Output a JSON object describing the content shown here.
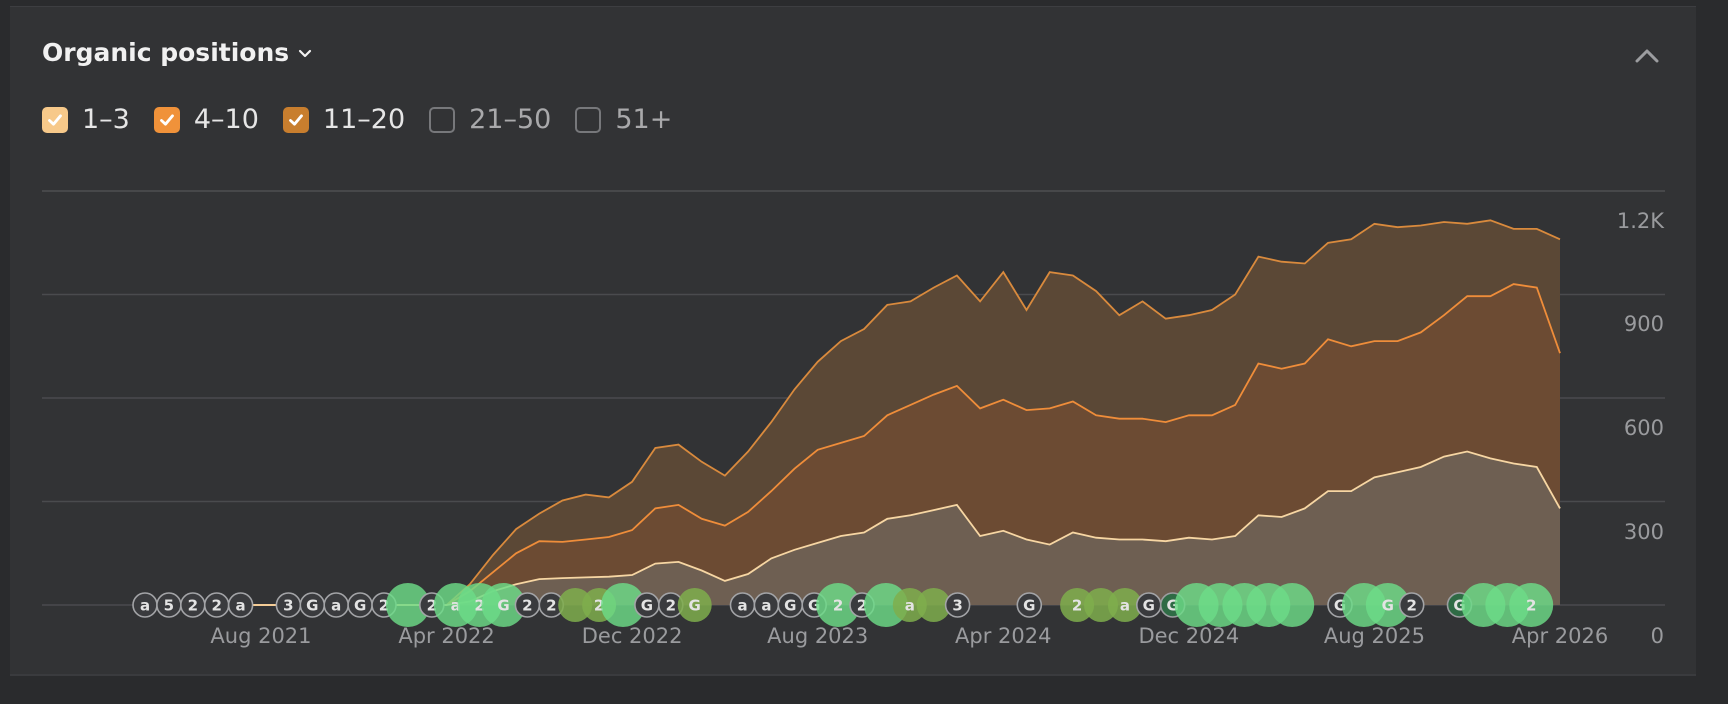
{
  "header": {
    "title": "Organic positions"
  },
  "legend": [
    {
      "label": "1–3",
      "checked": true,
      "color": "#f7c98a"
    },
    {
      "label": "4–10",
      "checked": true,
      "color": "#f0923a"
    },
    {
      "label": "11–20",
      "checked": true,
      "color": "#c87e2e"
    },
    {
      "label": "21–50",
      "checked": false,
      "color": "#77787b"
    },
    {
      "label": "51+",
      "checked": false,
      "color": "#77787b"
    }
  ],
  "chart_data": {
    "type": "area",
    "stacked": true,
    "x_ticks": [
      "Aug 2021",
      "Apr 2022",
      "Dec 2022",
      "Aug 2023",
      "Apr 2024",
      "Dec 2024",
      "Aug 2025",
      "Apr 2026"
    ],
    "x_start": "2021-03",
    "x_end": "2026-04",
    "y_ticks": [
      "0",
      "300",
      "600",
      "900",
      "1.2K"
    ],
    "ylim": [
      0,
      1200
    ],
    "grid": true,
    "months": [
      "2021-03",
      "2021-04",
      "2021-05",
      "2021-06",
      "2021-07",
      "2021-08",
      "2021-09",
      "2021-10",
      "2021-11",
      "2021-12",
      "2022-01",
      "2022-02",
      "2022-03",
      "2022-04",
      "2022-05",
      "2022-06",
      "2022-07",
      "2022-08",
      "2022-09",
      "2022-10",
      "2022-11",
      "2022-12",
      "2023-01",
      "2023-02",
      "2023-03",
      "2023-04",
      "2023-05",
      "2023-06",
      "2023-07",
      "2023-08",
      "2023-09",
      "2023-10",
      "2023-11",
      "2023-12",
      "2024-01",
      "2024-02",
      "2024-03",
      "2024-04",
      "2024-05",
      "2024-06",
      "2024-07",
      "2024-08",
      "2024-09",
      "2024-10",
      "2024-11",
      "2024-12",
      "2025-01",
      "2025-02",
      "2025-03",
      "2025-04",
      "2025-05",
      "2025-06",
      "2025-07",
      "2025-08",
      "2025-09",
      "2025-10",
      "2025-11",
      "2025-12",
      "2026-01",
      "2026-02",
      "2026-03",
      "2026-04"
    ],
    "series": [
      {
        "name": "1–3",
        "color": "#f7c98a",
        "values": [
          0,
          0,
          0,
          0,
          0,
          0,
          0,
          0,
          0,
          0,
          0,
          0,
          0,
          0,
          10,
          40,
          60,
          75,
          78,
          80,
          82,
          87,
          120,
          125,
          100,
          70,
          90,
          135,
          160,
          180,
          200,
          210,
          250,
          260,
          275,
          290,
          200,
          215,
          190,
          175,
          210,
          195,
          190,
          190,
          185,
          195,
          190,
          200,
          260,
          255,
          280,
          330,
          330,
          370,
          385,
          400,
          430,
          445,
          425,
          410,
          400,
          280
        ]
      },
      {
        "name": "4–10",
        "color": "#f0923a",
        "values": [
          0,
          0,
          0,
          0,
          0,
          0,
          0,
          0,
          0,
          0,
          0,
          0,
          0,
          0,
          30,
          55,
          90,
          110,
          105,
          110,
          115,
          130,
          160,
          165,
          150,
          160,
          180,
          195,
          235,
          270,
          270,
          280,
          300,
          320,
          335,
          345,
          370,
          380,
          375,
          395,
          380,
          355,
          350,
          350,
          345,
          355,
          360,
          380,
          440,
          430,
          420,
          440,
          420,
          395,
          380,
          390,
          410,
          450,
          470,
          520,
          520,
          450
        ]
      },
      {
        "name": "11–20",
        "color": "#c87e2e",
        "values": [
          0,
          0,
          0,
          0,
          0,
          0,
          0,
          0,
          0,
          0,
          0,
          0,
          0,
          0,
          20,
          50,
          70,
          80,
          120,
          130,
          115,
          140,
          175,
          175,
          165,
          145,
          175,
          200,
          230,
          255,
          295,
          310,
          320,
          300,
          310,
          320,
          310,
          370,
          290,
          395,
          365,
          360,
          300,
          340,
          300,
          290,
          305,
          320,
          310,
          310,
          290,
          280,
          310,
          340,
          330,
          310,
          270,
          210,
          220,
          160,
          170,
          330
        ]
      }
    ]
  },
  "markers": [
    {
      "month": "2021-08",
      "label": "a",
      "kind": "outline"
    },
    {
      "month": "2021-09",
      "label": "5",
      "kind": "outline"
    },
    {
      "month": "2021-10",
      "label": "2",
      "kind": "outline"
    },
    {
      "month": "2021-11",
      "label": "2",
      "kind": "outline"
    },
    {
      "month": "2021-12",
      "label": "a",
      "kind": "outline"
    },
    {
      "month": "2022-02",
      "label": "3",
      "kind": "outline"
    },
    {
      "month": "2022-03",
      "label": "G",
      "kind": "outline"
    },
    {
      "month": "2022-04",
      "label": "a",
      "kind": "outline"
    },
    {
      "month": "2022-05",
      "label": "G",
      "kind": "outline"
    },
    {
      "month": "2022-06",
      "label": "2",
      "kind": "outline"
    },
    {
      "month": "2022-07",
      "label": "",
      "kind": "big"
    },
    {
      "month": "2022-08",
      "label": "2",
      "kind": "outline"
    },
    {
      "month": "2022-09",
      "label": "a",
      "kind": "big"
    },
    {
      "month": "2022-10",
      "label": "2",
      "kind": "big"
    },
    {
      "month": "2022-11",
      "label": "G",
      "kind": "big"
    },
    {
      "month": "2022-12",
      "label": "2",
      "kind": "outline"
    },
    {
      "month": "2023-01",
      "label": "2",
      "kind": "outline"
    },
    {
      "month": "2023-02",
      "label": "",
      "kind": "medium"
    },
    {
      "month": "2023-03",
      "label": "2",
      "kind": "medium"
    },
    {
      "month": "2023-04",
      "label": "",
      "kind": "big"
    },
    {
      "month": "2023-05",
      "label": "G",
      "kind": "outline"
    },
    {
      "month": "2023-06",
      "label": "2",
      "kind": "outline"
    },
    {
      "month": "2023-07",
      "label": "G",
      "kind": "medium"
    },
    {
      "month": "2023-09",
      "label": "a",
      "kind": "outline"
    },
    {
      "month": "2023-10",
      "label": "a",
      "kind": "outline"
    },
    {
      "month": "2023-11",
      "label": "G",
      "kind": "outline"
    },
    {
      "month": "2023-12",
      "label": "G",
      "kind": "outline"
    },
    {
      "month": "2024-01",
      "label": "2",
      "kind": "big"
    },
    {
      "month": "2024-02",
      "label": "2",
      "kind": "outline"
    },
    {
      "month": "2024-03",
      "label": "",
      "kind": "big"
    },
    {
      "month": "2024-04",
      "label": "a",
      "kind": "medium"
    },
    {
      "month": "2024-05",
      "label": "",
      "kind": "medium"
    },
    {
      "month": "2024-06",
      "label": "3",
      "kind": "outline"
    },
    {
      "month": "2024-09",
      "label": "G",
      "kind": "outline"
    },
    {
      "month": "2024-11",
      "label": "2",
      "kind": "medium"
    },
    {
      "month": "2024-12",
      "label": "",
      "kind": "medium"
    },
    {
      "month": "2025-01",
      "label": "a",
      "kind": "medium"
    },
    {
      "month": "2025-02",
      "label": "G",
      "kind": "outline"
    },
    {
      "month": "2025-03",
      "label": "G",
      "kind": "dark"
    },
    {
      "month": "2025-04",
      "label": "",
      "kind": "big"
    },
    {
      "month": "2025-05",
      "label": "",
      "kind": "big"
    },
    {
      "month": "2025-06",
      "label": "",
      "kind": "big"
    },
    {
      "month": "2025-07",
      "label": "",
      "kind": "big"
    },
    {
      "month": "2025-08",
      "label": "",
      "kind": "big"
    },
    {
      "month": "2025-10",
      "label": "G",
      "kind": "outline"
    },
    {
      "month": "2025-11",
      "label": "",
      "kind": "big"
    },
    {
      "month": "2025-12",
      "label": "G",
      "kind": "big"
    },
    {
      "month": "2026-01",
      "label": "2",
      "kind": "outline"
    },
    {
      "month": "2026-03",
      "label": "G",
      "kind": "dark"
    },
    {
      "month": "2026-04",
      "label": "",
      "kind": "big"
    },
    {
      "month": "2026-05",
      "label": "",
      "kind": "big"
    },
    {
      "month": "2026-06",
      "label": "2",
      "kind": "big"
    }
  ],
  "colors": {
    "band_13_fill": "#6e5f52",
    "band_410_fill": "#6c4b33",
    "band_1120_fill": "#5b4836",
    "line_13": "#f7d6a3",
    "line_410": "#ef8d3a",
    "line_1120": "#d98a3d",
    "grid": "#4a4b4e",
    "marker_big": "#6ddc87",
    "marker_medium": "#7fae4c"
  }
}
